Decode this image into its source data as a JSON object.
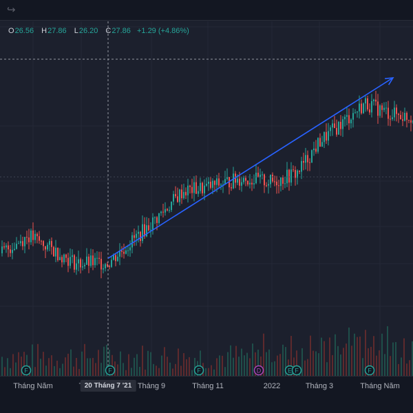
{
  "toolbar": {
    "redo_icon": "redo-arrow-icon",
    "redo_glyph": "↪"
  },
  "legend": {
    "open_key": "O",
    "open": "26.56",
    "high_key": "H",
    "high": "27.86",
    "low_key": "L",
    "low": "26.20",
    "close_key": "C",
    "close": "27.86",
    "change": "+1.29 (+4.86%)"
  },
  "colors": {
    "up": "#26a69a",
    "down": "#ef5350",
    "trend": "#2962ff",
    "background": "#131722"
  },
  "chart_data": {
    "type": "candlestick",
    "price_series": [
      {
        "x": "Tháng Năm",
        "y": 17.2
      },
      {
        "x": "Tháng 6",
        "y": 18.6
      },
      {
        "x": "Tháng 7",
        "y": 16.4
      },
      {
        "x": "20 Tháng 7 '21",
        "y": 16.5
      },
      {
        "x": "Tháng 9",
        "y": 19.6
      },
      {
        "x": "Tháng 10",
        "y": 22.1
      },
      {
        "x": "Tháng 11",
        "y": 22.4
      },
      {
        "x": "Tháng 12",
        "y": 23.1
      },
      {
        "x": "2022",
        "y": 22.8
      },
      {
        "x": "Tháng 2",
        "y": 23.5
      },
      {
        "x": "Tháng 3",
        "y": 26.0
      },
      {
        "x": "Tháng 4",
        "y": 29.0
      },
      {
        "x": "Tháng Năm",
        "y": 28.2
      },
      {
        "x": "Tháng 6",
        "y": 27.86
      }
    ],
    "trend_line": {
      "from": {
        "x": "20 Tháng 7 '21",
        "y": 16.8
      },
      "to": {
        "x": "Tháng 6",
        "y": 31.0
      }
    },
    "x_tick_labels": [
      "Tháng Năm",
      "T",
      "Tháng 9",
      "Tháng 11",
      "2022",
      "Tháng 3",
      "Tháng Năm"
    ],
    "crosshair_label": "20 Tháng 7 '21",
    "event_markers": [
      {
        "label": "F",
        "color": "#26a69a"
      },
      {
        "label": "F",
        "color": "#26a69a"
      },
      {
        "label": "F",
        "color": "#26a69a"
      },
      {
        "label": "D",
        "color": "#ab47bc"
      },
      {
        "label": "E",
        "color": "#26a69a"
      },
      {
        "label": "F",
        "color": "#26a69a"
      },
      {
        "label": "F",
        "color": "#26a69a"
      }
    ],
    "grid": true
  }
}
